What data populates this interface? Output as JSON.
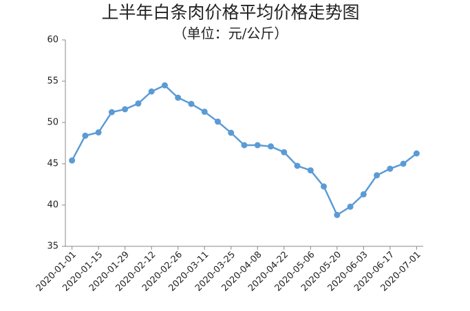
{
  "chart_data": {
    "type": "line",
    "title": "上半年白条肉价格平均价格走势图",
    "subtitle": "（单位：元/公斤）",
    "categories": [
      "2020-01-01",
      null,
      "2020-01-15",
      null,
      "2020-01-29",
      null,
      "2020-02-12",
      null,
      "2020-02-26",
      null,
      "2020-03-11",
      null,
      "2020-03-25",
      null,
      "2020-04-08",
      null,
      "2020-04-22",
      null,
      "2020-05-06",
      null,
      "2020-05-20",
      null,
      "2020-06-03",
      null,
      "2020-06-17",
      null,
      "2020-07-01"
    ],
    "values": [
      45.4,
      48.4,
      48.8,
      51.25,
      51.6,
      52.3,
      53.75,
      54.5,
      53.0,
      52.25,
      51.3,
      50.1,
      48.75,
      47.25,
      47.25,
      47.1,
      46.4,
      44.75,
      44.2,
      42.25,
      38.8,
      39.8,
      41.3,
      43.6,
      44.4,
      45.0,
      46.25
    ],
    "color": "#5b9bd5",
    "ylim": [
      35,
      60
    ],
    "yticks": [
      35,
      40,
      45,
      50,
      55,
      60
    ],
    "grid": false
  }
}
